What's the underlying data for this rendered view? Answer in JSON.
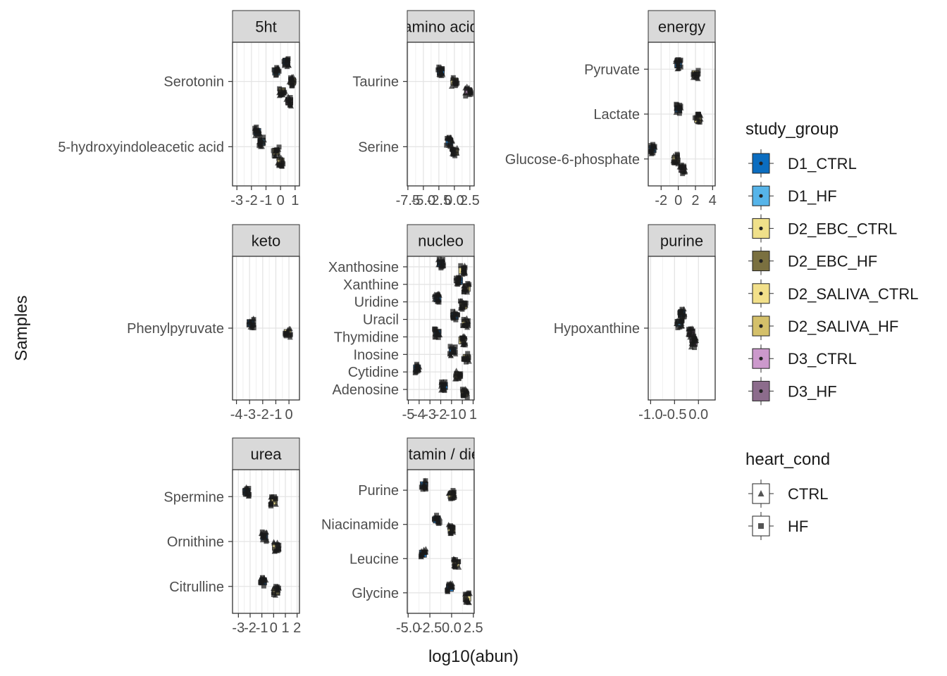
{
  "chart_data": {
    "type": "boxplot",
    "xlabel": "log10(abun)",
    "ylabel": "Samples",
    "panels": [
      {
        "strip": "5ht",
        "x_ticks": [
          "-3",
          "-2",
          "-1",
          "0",
          "1"
        ],
        "x_tick_values": [
          -3,
          -2,
          -1,
          0,
          1
        ],
        "xlim": [
          -3.3,
          1.3
        ],
        "y_labels": [
          "Serotonin",
          "5-hydroxyindoleacetic acid"
        ],
        "clusters": [
          {
            "y": 0,
            "groups": [
              {
                "g": "D1_CTRL",
                "x": 0.4
              },
              {
                "g": "D1_HF",
                "x": -0.3
              },
              {
                "g": "D2_EBC_CTRL",
                "x": 0.8
              },
              {
                "g": "D2_SALIVA_CTRL",
                "x": 0.1
              },
              {
                "g": "D3_CTRL",
                "x": 0.6
              }
            ]
          },
          {
            "y": 1,
            "groups": [
              {
                "g": "D1_CTRL",
                "x": -1.6
              },
              {
                "g": "D1_HF",
                "x": -1.3
              },
              {
                "g": "D2_EBC_CTRL",
                "x": -0.3
              },
              {
                "g": "D2_SALIVA_CTRL",
                "x": 0.0
              }
            ]
          }
        ]
      },
      {
        "strip": "amino acid",
        "x_ticks": [
          "-7.5",
          "-5.0",
          "-2.5",
          "0.0",
          "2.5"
        ],
        "x_tick_values": [
          -7.5,
          -5,
          -2.5,
          0,
          2.5
        ],
        "xlim": [
          -7.6,
          3.2
        ],
        "y_labels": [
          "Taurine",
          "Serine"
        ],
        "clusters": [
          {
            "y": 0,
            "groups": [
              {
                "g": "D1_CTRL",
                "x": -2.2
              },
              {
                "g": "D2_EBC_CTRL",
                "x": 0.0
              },
              {
                "g": "D3_CTRL",
                "x": 2.2
              }
            ]
          },
          {
            "y": 1,
            "groups": [
              {
                "g": "D1_CTRL",
                "x": -0.8
              },
              {
                "g": "D2_EBC_CTRL",
                "x": 0.1
              }
            ]
          }
        ]
      },
      {
        "strip": "energy",
        "x_ticks": [
          "-2",
          "0",
          "2",
          "4"
        ],
        "x_tick_values": [
          -2,
          0,
          2,
          4
        ],
        "xlim": [
          -3.5,
          4.3
        ],
        "y_labels": [
          "Pyruvate",
          "Lactate",
          "Glucose-6-phosphate"
        ],
        "clusters": [
          {
            "y": 0,
            "groups": [
              {
                "g": "D1_CTRL",
                "x": 0.0
              },
              {
                "g": "D2_EBC_CTRL",
                "x": 2.0
              }
            ]
          },
          {
            "y": 1,
            "groups": [
              {
                "g": "D1_CTRL",
                "x": 0.0
              },
              {
                "g": "D2_EBC_CTRL",
                "x": 2.3
              }
            ]
          },
          {
            "y": 2,
            "groups": [
              {
                "g": "D1_CTRL",
                "x": -3.0
              },
              {
                "g": "D2_EBC_CTRL",
                "x": -0.3
              },
              {
                "g": "D3_CTRL",
                "x": 0.5
              }
            ]
          }
        ]
      },
      {
        "strip": "keto",
        "x_ticks": [
          "-4",
          "-3",
          "-2",
          "-1",
          "0"
        ],
        "x_tick_values": [
          -4,
          -3,
          -2,
          -1,
          0
        ],
        "xlim": [
          -4.3,
          0.8
        ],
        "y_labels": [
          "Phenylpyruvate"
        ],
        "clusters": [
          {
            "y": 0,
            "groups": [
              {
                "g": "D1_CTRL",
                "x": -2.9
              },
              {
                "g": "D2_EBC_CTRL",
                "x": -0.1
              }
            ]
          }
        ]
      },
      {
        "strip": "nucleo",
        "x_ticks": [
          "-5",
          "-4",
          "-3",
          "-2",
          "-1",
          "0",
          "1"
        ],
        "x_tick_values": [
          -5,
          -4,
          -3,
          -2,
          -1,
          0,
          1
        ],
        "xlim": [
          -5.1,
          1.1
        ],
        "y_labels": [
          "Xanthosine",
          "Xanthine",
          "Uridine",
          "Uracil",
          "Thymidine",
          "Inosine",
          "Cytidine",
          "Adenosine"
        ],
        "clusters": [
          {
            "y": 0,
            "groups": [
              {
                "g": "D1_CTRL",
                "x": -2.0
              },
              {
                "g": "D2_EBC_CTRL",
                "x": 0.0
              }
            ]
          },
          {
            "y": 1,
            "groups": [
              {
                "g": "D1_CTRL",
                "x": -0.3
              },
              {
                "g": "D2_EBC_CTRL",
                "x": 0.4
              }
            ]
          },
          {
            "y": 2,
            "groups": [
              {
                "g": "D1_CTRL",
                "x": -2.3
              },
              {
                "g": "D2_EBC_CTRL",
                "x": 0.1
              }
            ]
          },
          {
            "y": 3,
            "groups": [
              {
                "g": "D1_CTRL",
                "x": -0.7
              },
              {
                "g": "D2_EBC_CTRL",
                "x": 0.3
              }
            ]
          },
          {
            "y": 4,
            "groups": [
              {
                "g": "D1_CTRL",
                "x": -2.3
              },
              {
                "g": "D2_EBC_CTRL",
                "x": 0.0
              }
            ]
          },
          {
            "y": 5,
            "groups": [
              {
                "g": "D1_CTRL",
                "x": -0.9
              },
              {
                "g": "D2_EBC_CTRL",
                "x": 0.4
              }
            ]
          },
          {
            "y": 6,
            "groups": [
              {
                "g": "D1_CTRL",
                "x": -4.2
              },
              {
                "g": "D2_EBC_CTRL",
                "x": -0.4
              }
            ]
          },
          {
            "y": 7,
            "groups": [
              {
                "g": "D1_CTRL",
                "x": -1.7
              },
              {
                "g": "D2_EBC_CTRL",
                "x": 0.2
              }
            ]
          }
        ]
      },
      {
        "strip": "purine",
        "x_ticks": [
          "-1.0",
          "-0.5",
          "0.0"
        ],
        "x_tick_values": [
          -1,
          -0.5,
          0
        ],
        "xlim": [
          -1.05,
          0.35
        ],
        "y_labels": [
          "Hypoxanthine"
        ],
        "clusters": [
          {
            "y": 0,
            "groups": [
              {
                "g": "D1_CTRL",
                "x": -0.35
              },
              {
                "g": "D1_HF",
                "x": -0.4
              },
              {
                "g": "D3_CTRL",
                "x": -0.15
              },
              {
                "g": "D3_HF",
                "x": -0.1
              }
            ]
          }
        ]
      },
      {
        "strip": "urea",
        "x_ticks": [
          "-3",
          "-2",
          "-1",
          "0",
          "1",
          "2"
        ],
        "x_tick_values": [
          -3,
          -2,
          -1,
          0,
          1,
          2
        ],
        "xlim": [
          -3.5,
          2.2
        ],
        "y_labels": [
          "Spermine",
          "Ornithine",
          "Citrulline"
        ],
        "clusters": [
          {
            "y": 0,
            "groups": [
              {
                "g": "D1_CTRL",
                "x": -2.3
              },
              {
                "g": "D2_EBC_CTRL",
                "x": 0.0
              }
            ]
          },
          {
            "y": 1,
            "groups": [
              {
                "g": "D1_CTRL",
                "x": -0.8
              },
              {
                "g": "D2_EBC_CTRL",
                "x": 0.2
              }
            ]
          },
          {
            "y": 2,
            "groups": [
              {
                "g": "D1_CTRL",
                "x": -0.9
              },
              {
                "g": "D2_EBC_CTRL",
                "x": 0.2
              }
            ]
          }
        ]
      },
      {
        "strip": "vitamin / diet",
        "x_ticks": [
          "-5.0",
          "-2.5",
          "0.0",
          "2.5"
        ],
        "x_tick_values": [
          -5,
          -2.5,
          0,
          2.5
        ],
        "xlim": [
          -5.1,
          2.6
        ],
        "y_labels": [
          "Purine",
          "Niacinamide",
          "Leucine",
          "Glycine"
        ],
        "clusters": [
          {
            "y": 0,
            "groups": [
              {
                "g": "D1_CTRL",
                "x": -3.2
              },
              {
                "g": "D2_EBC_CTRL",
                "x": 0.0
              }
            ]
          },
          {
            "y": 1,
            "groups": [
              {
                "g": "D1_CTRL",
                "x": -1.7
              },
              {
                "g": "D2_EBC_CTRL",
                "x": 0.0
              }
            ]
          },
          {
            "y": 2,
            "groups": [
              {
                "g": "D1_CTRL",
                "x": -3.3
              },
              {
                "g": "D2_EBC_CTRL",
                "x": 0.5
              }
            ]
          },
          {
            "y": 3,
            "groups": [
              {
                "g": "D1_CTRL",
                "x": -0.2
              },
              {
                "g": "D2_EBC_CTRL",
                "x": 1.8
              }
            ]
          }
        ]
      }
    ],
    "legend_fill": {
      "title": "study_group",
      "entries": [
        {
          "name": "D1_CTRL",
          "color": "#0b6dc0"
        },
        {
          "name": "D1_HF",
          "color": "#56b4e9"
        },
        {
          "name": "D2_EBC_CTRL",
          "color": "#f0e08a"
        },
        {
          "name": "D2_EBC_HF",
          "color": "#7a7040"
        },
        {
          "name": "D2_SALIVA_CTRL",
          "color": "#f2e08a"
        },
        {
          "name": "D2_SALIVA_HF",
          "color": "#d4c06a"
        },
        {
          "name": "D3_CTRL",
          "color": "#cc99cc"
        },
        {
          "name": "D3_HF",
          "color": "#8c6c8c"
        }
      ]
    },
    "legend_shape": {
      "title": "heart_cond",
      "entries": [
        {
          "name": "CTRL",
          "shape": "triangle"
        },
        {
          "name": "HF",
          "shape": "square"
        }
      ]
    },
    "grid": true,
    "legend_position": "right"
  }
}
